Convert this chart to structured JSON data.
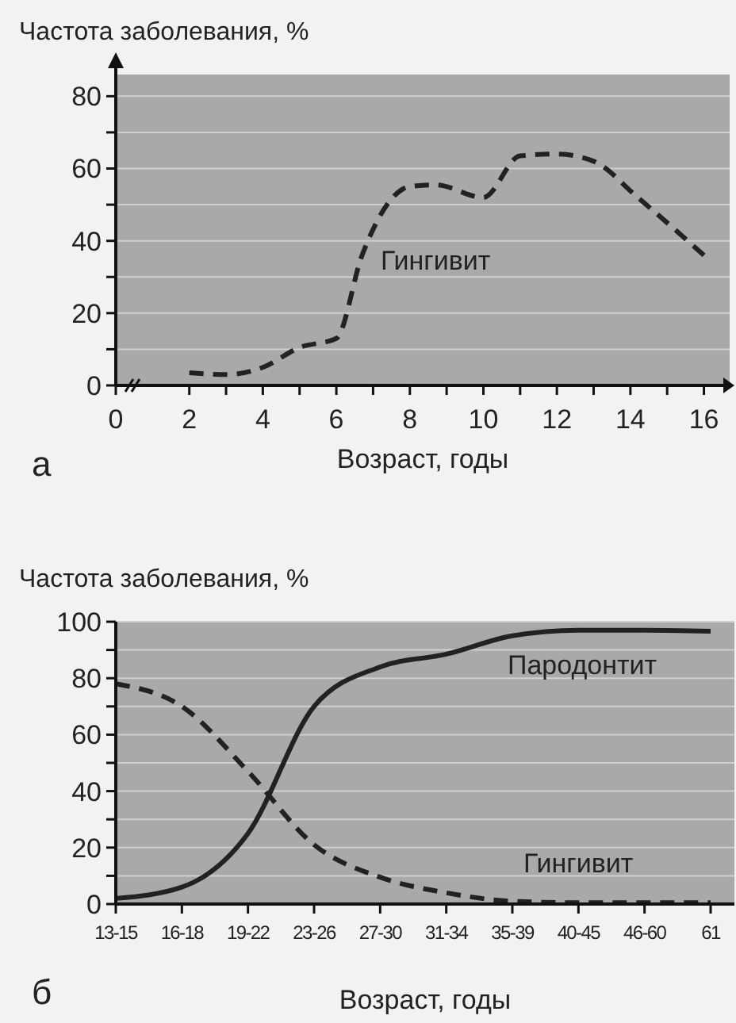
{
  "chart_data": [
    {
      "type": "line",
      "ylabel": "Частота заболевания, %",
      "xlabel": "Возраст, годы",
      "annotations": [
        "а"
      ],
      "xlim": [
        0,
        16.7
      ],
      "ylim": [
        0,
        86
      ],
      "xticks": [
        0,
        2,
        {
          "value": 3,
          "label": null
        },
        4,
        {
          "value": 5,
          "label": null
        },
        6,
        {
          "value": 7,
          "label": null
        },
        8,
        {
          "value": 9,
          "label": null
        },
        10,
        {
          "value": 11,
          "label": null
        },
        12,
        {
          "value": 13,
          "label": null
        },
        14,
        {
          "value": 15,
          "label": null
        },
        16
      ],
      "yticks": [
        0,
        {
          "value": 10,
          "label": null
        },
        20,
        {
          "value": 30,
          "label": null
        },
        40,
        {
          "value": 50,
          "label": null
        },
        60,
        {
          "value": 70,
          "label": null
        },
        80
      ],
      "grid": "y",
      "legend": false,
      "marker": "none",
      "series": [
        {
          "name": "Гингивит",
          "color": "#222222",
          "line_style": "dashed",
          "x": [
            2,
            3,
            4,
            5,
            6,
            6.7,
            8,
            8.7,
            10,
            11,
            12,
            13,
            14.2,
            16
          ],
          "values": [
            3.5,
            3,
            5,
            10.5,
            13,
            36,
            55,
            55.5,
            52,
            63.5,
            64,
            62,
            52,
            36
          ]
        }
      ]
    },
    {
      "type": "line",
      "ylabel": "Частота заболевания, %",
      "xlabel": "Возраст, годы",
      "annotations": [
        "б"
      ],
      "categories": [
        "13-15",
        "16-18",
        "19-22",
        "23-26",
        "27-30",
        "31-34",
        "35-39",
        "40-45",
        "46-60",
        "61"
      ],
      "ylim": [
        0,
        100
      ],
      "yticks": [
        0,
        {
          "value": 10,
          "label": null
        },
        20,
        {
          "value": 30,
          "label": null
        },
        40,
        {
          "value": 50,
          "label": null
        },
        60,
        {
          "value": 70,
          "label": null
        },
        80,
        {
          "value": 90,
          "label": null
        },
        100
      ],
      "grid": "y",
      "legend": false,
      "marker": "none",
      "series": [
        {
          "name": "Пародонтит",
          "color": "#222222",
          "line_style": "solid",
          "values": [
            2,
            6,
            25,
            70,
            84,
            88.5,
            95,
            97,
            97,
            96.6
          ]
        },
        {
          "name": "Гингивит",
          "color": "#222222",
          "line_style": "dashed",
          "values": [
            78,
            70,
            47,
            21,
            9.5,
            4,
            1,
            0.5,
            0.5,
            0.5
          ]
        }
      ]
    }
  ]
}
